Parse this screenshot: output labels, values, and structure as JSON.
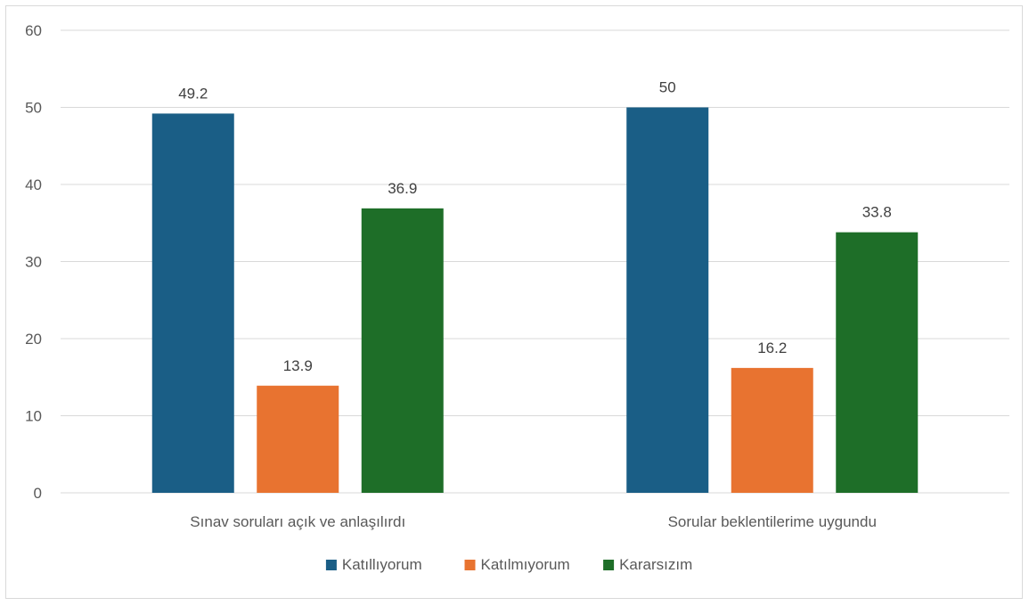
{
  "chart_data": {
    "type": "bar",
    "title": "",
    "xlabel": "",
    "ylabel": "",
    "ylim": [
      0,
      60
    ],
    "yticks": [
      0,
      10,
      20,
      30,
      40,
      50,
      60
    ],
    "grid": true,
    "legend_position": "bottom",
    "categories": [
      "Sınav soruları açık ve anlaşılırdı",
      "Sorular beklentilerime uygundu"
    ],
    "series": [
      {
        "name": "Katıllıyorum",
        "values": [
          49.2,
          50
        ],
        "labels": [
          "49.2",
          "50"
        ],
        "color": "#1a5e86"
      },
      {
        "name": "Katılmıyorum",
        "values": [
          13.9,
          16.2
        ],
        "labels": [
          "13.9",
          "16.2"
        ],
        "color": "#e87330"
      },
      {
        "name": "Kararsızım",
        "values": [
          36.9,
          33.8
        ],
        "labels": [
          "36.9",
          "33.8"
        ],
        "color": "#1e6e28"
      }
    ]
  }
}
